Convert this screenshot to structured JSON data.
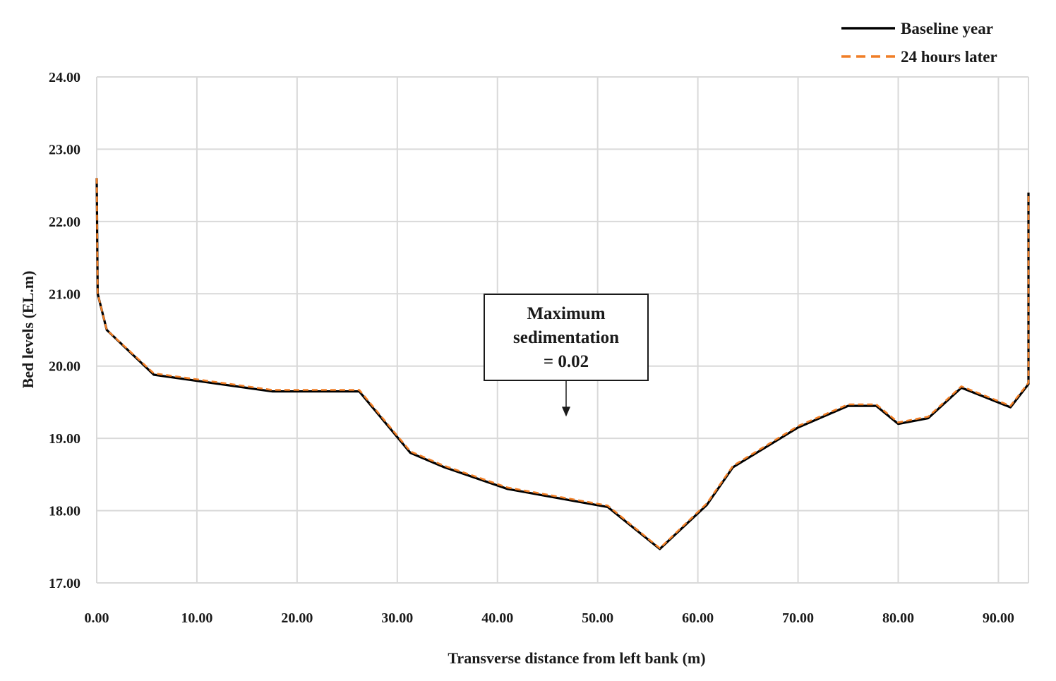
{
  "chart_data": {
    "type": "line",
    "xlabel": "Transverse distance from left bank (m)",
    "ylabel": "Bed levels (EL.m)",
    "xlim": [
      0,
      93
    ],
    "ylim": [
      17,
      24
    ],
    "x_ticks": [
      0,
      10,
      20,
      30,
      40,
      50,
      60,
      70,
      80,
      90
    ],
    "x_tick_labels": [
      "0.00",
      "10.00",
      "20.00",
      "30.00",
      "40.00",
      "50.00",
      "60.00",
      "70.00",
      "80.00",
      "90.00"
    ],
    "y_ticks": [
      17,
      18,
      19,
      20,
      21,
      22,
      23,
      24
    ],
    "y_tick_labels": [
      "17.00",
      "18.00",
      "19.00",
      "20.00",
      "21.00",
      "22.00",
      "23.00",
      "24.00"
    ],
    "grid": true,
    "legend_position": "top-right",
    "series": [
      {
        "name": "Baseline year",
        "color": "#000000",
        "style": "solid",
        "points": [
          [
            0,
            22.6
          ],
          [
            0.1,
            21.0
          ],
          [
            1,
            20.5
          ],
          [
            5.7,
            19.88
          ],
          [
            17.5,
            19.65
          ],
          [
            26.2,
            19.65
          ],
          [
            31.3,
            18.8
          ],
          [
            34.7,
            18.6
          ],
          [
            41,
            18.3
          ],
          [
            51,
            18.05
          ],
          [
            56.2,
            17.47
          ],
          [
            60.9,
            18.08
          ],
          [
            63.5,
            18.6
          ],
          [
            70,
            19.15
          ],
          [
            75,
            19.45
          ],
          [
            77.8,
            19.45
          ],
          [
            80,
            19.2
          ],
          [
            83,
            19.28
          ],
          [
            86.3,
            19.7
          ],
          [
            91.2,
            19.43
          ],
          [
            93,
            19.75
          ],
          [
            93,
            22.4
          ]
        ]
      },
      {
        "name": "24 hours later",
        "color": "#f07e26",
        "style": "dashed",
        "points": [
          [
            0,
            22.6
          ],
          [
            0.1,
            21.0
          ],
          [
            1,
            20.5
          ],
          [
            5.7,
            19.9
          ],
          [
            17.5,
            19.67
          ],
          [
            26.2,
            19.67
          ],
          [
            31.3,
            18.82
          ],
          [
            34.7,
            18.62
          ],
          [
            41,
            18.32
          ],
          [
            51,
            18.07
          ],
          [
            56.2,
            17.48
          ],
          [
            60.9,
            18.1
          ],
          [
            63.5,
            18.62
          ],
          [
            70,
            19.17
          ],
          [
            75,
            19.47
          ],
          [
            77.8,
            19.47
          ],
          [
            80,
            19.22
          ],
          [
            83,
            19.3
          ],
          [
            86.3,
            19.72
          ],
          [
            91.2,
            19.45
          ],
          [
            93,
            19.77
          ],
          [
            93,
            22.4
          ]
        ]
      }
    ],
    "annotation": {
      "lines": [
        "Maximum",
        "sedimentation",
        "= 0.02"
      ],
      "arrow_target": [
        47,
        19.3
      ]
    }
  }
}
